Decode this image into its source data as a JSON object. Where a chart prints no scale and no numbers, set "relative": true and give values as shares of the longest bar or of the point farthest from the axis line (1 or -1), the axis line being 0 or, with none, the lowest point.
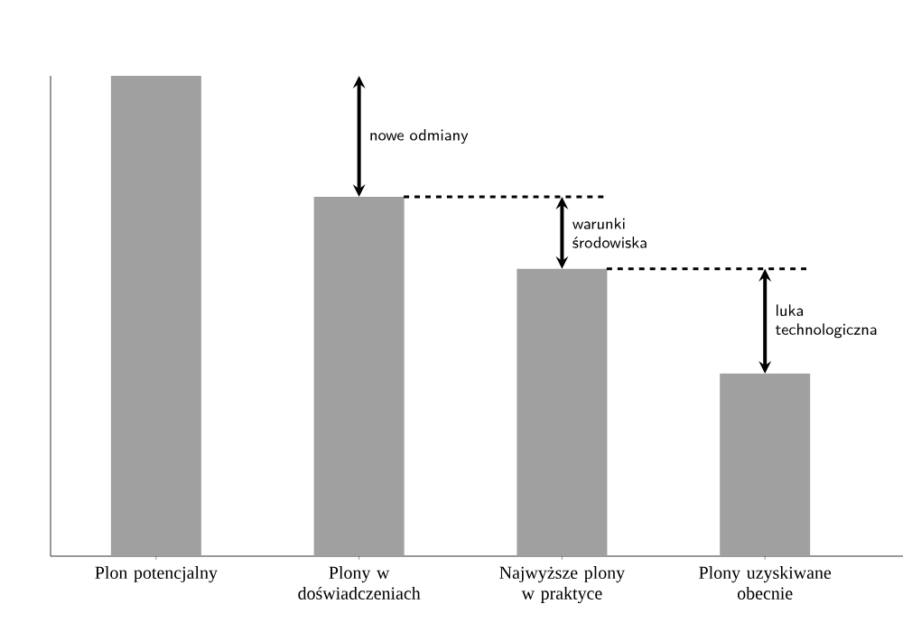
{
  "chart_data": {
    "type": "bar",
    "relative": true,
    "categories": [
      "Plon potencjalny",
      "Plony w doświadczeniach",
      "Najwyższe plony w praktyce",
      "Plony uzyskiwane obecnie"
    ],
    "values": [
      1,
      0.748,
      0.598,
      0.38
    ],
    "color": "#a0a0a0",
    "annotations": [
      "nowe odmiany",
      "warunki środowiska",
      "luka technologiczna"
    ]
  }
}
